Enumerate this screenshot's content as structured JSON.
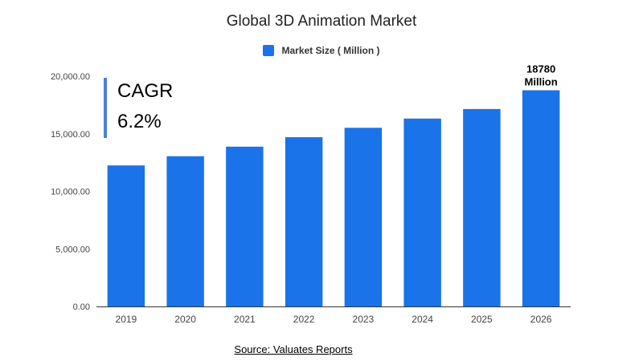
{
  "chart_data": {
    "type": "bar",
    "title": "Global 3D Animation Market",
    "xlabel": "",
    "ylabel": "",
    "categories": [
      "2019",
      "2020",
      "2021",
      "2022",
      "2023",
      "2024",
      "2025",
      "2026"
    ],
    "series": [
      {
        "name": "Market Size ( Million )",
        "values": [
          12250,
          13050,
          13880,
          14700,
          15520,
          16320,
          17150,
          18780
        ],
        "color": "#1a73e8"
      }
    ],
    "ylim": [
      0,
      20000
    ],
    "yticks": [
      0,
      5000,
      10000,
      15000,
      20000
    ],
    "ytick_labels": [
      "0.00",
      "5,000.00",
      "10,000.00",
      "15,000.00",
      "20,000.00"
    ],
    "grid": false,
    "legend_position": "top-center",
    "data_labels": [
      {
        "category": "2026",
        "lines": [
          "18780",
          "Million"
        ]
      }
    ],
    "annotation": {
      "lines": [
        "CAGR",
        "6.2%"
      ],
      "accent_color": "#4f7fd8"
    },
    "source": "Source: Valuates Reports"
  }
}
